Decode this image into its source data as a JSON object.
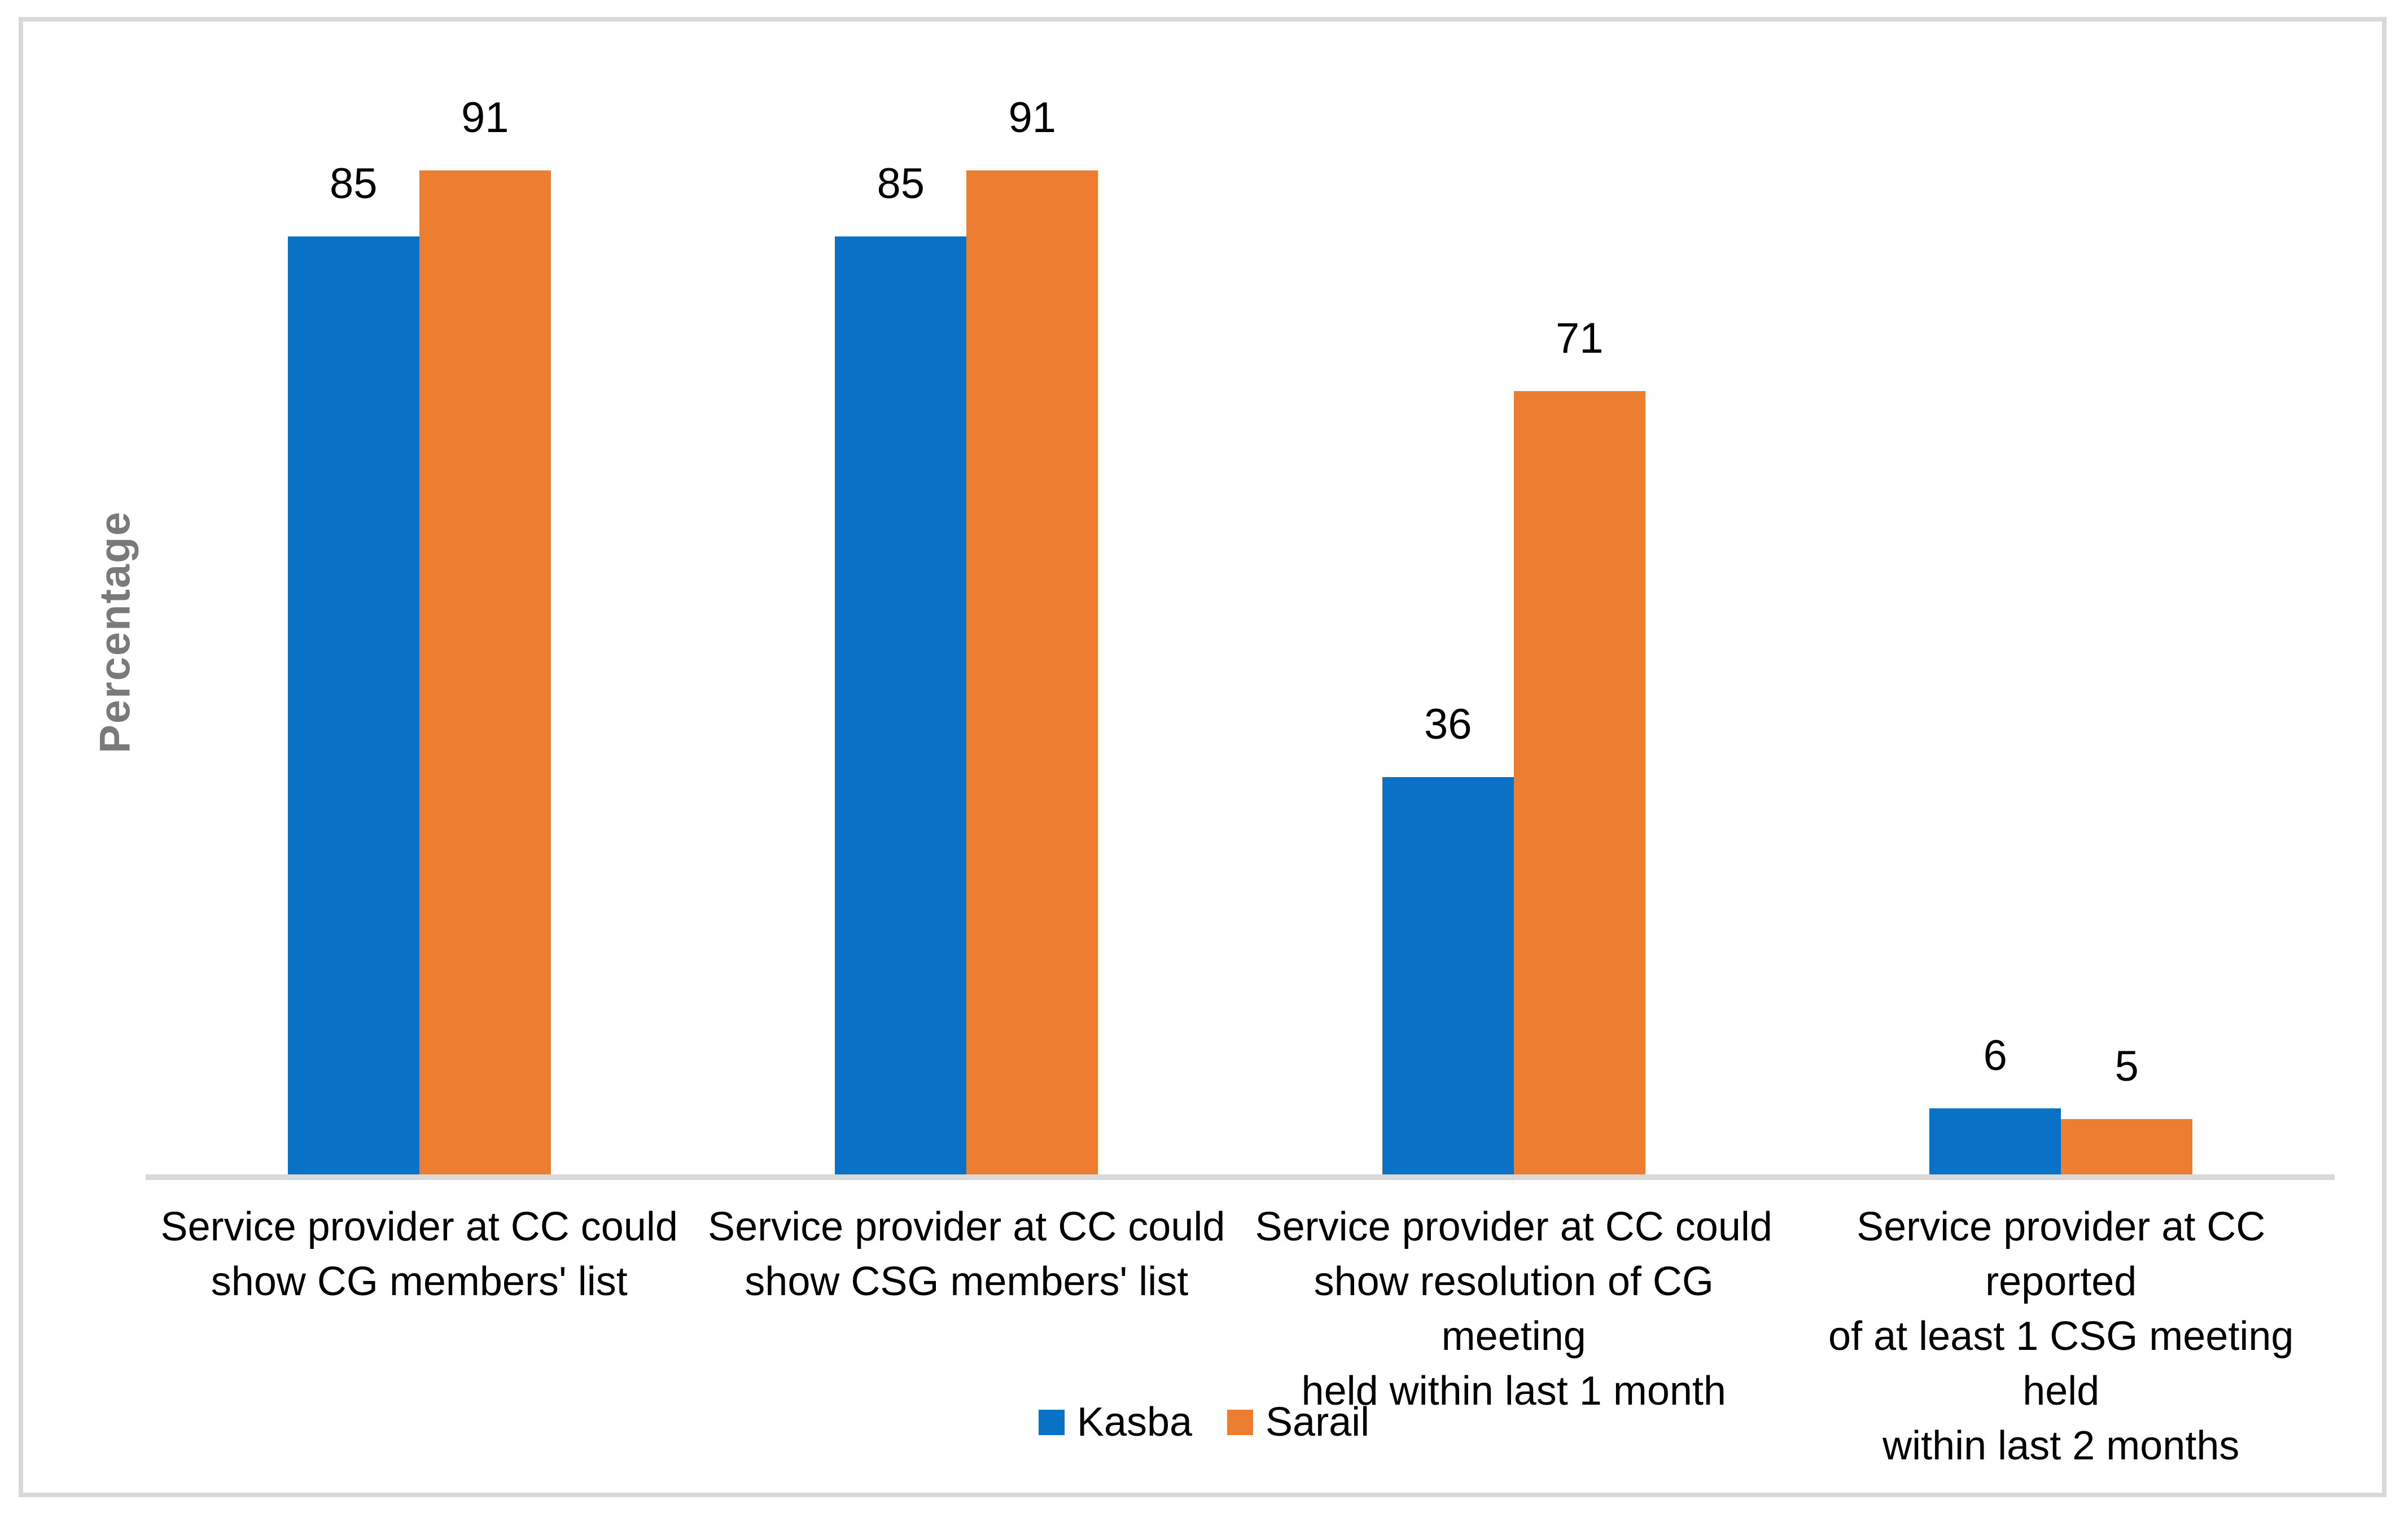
{
  "chart_data": {
    "type": "bar",
    "title": "",
    "xlabel": "",
    "ylabel": "Percentage",
    "ylim": [
      0,
      100
    ],
    "grid": false,
    "legend_position": "bottom",
    "value_labels": true,
    "categories": [
      "Service provider at CC could show CG members' list",
      "Service provider at CC could show CSG members' list",
      "Service provider at CC could show resolution of CG meeting held within last 1 month",
      "Service provider at CC reported of at least 1 CSG meeting held within last 2 months"
    ],
    "category_lines": [
      [
        "Service provider at CC could",
        "show CG members' list"
      ],
      [
        "Service provider at CC could",
        "show CSG members' list"
      ],
      [
        "Service provider at CC could",
        "show resolution of CG meeting",
        "held within last 1 month"
      ],
      [
        "Service provider at CC reported",
        "of at least 1 CSG meeting held",
        "within last 2 months"
      ]
    ],
    "series": [
      {
        "name": "Kasba",
        "color": "#0A72C6",
        "values": [
          85,
          85,
          36,
          6
        ]
      },
      {
        "name": "Sarail",
        "color": "#ED7D31",
        "values": [
          91,
          91,
          71,
          5
        ]
      }
    ],
    "colors": {
      "axis_line": "#D9D9D9",
      "chart_border": "#D9D9D9",
      "value_label_text": "#000000",
      "category_label_text": "#000000",
      "y_axis_title_text": "#7A7A7A"
    }
  }
}
